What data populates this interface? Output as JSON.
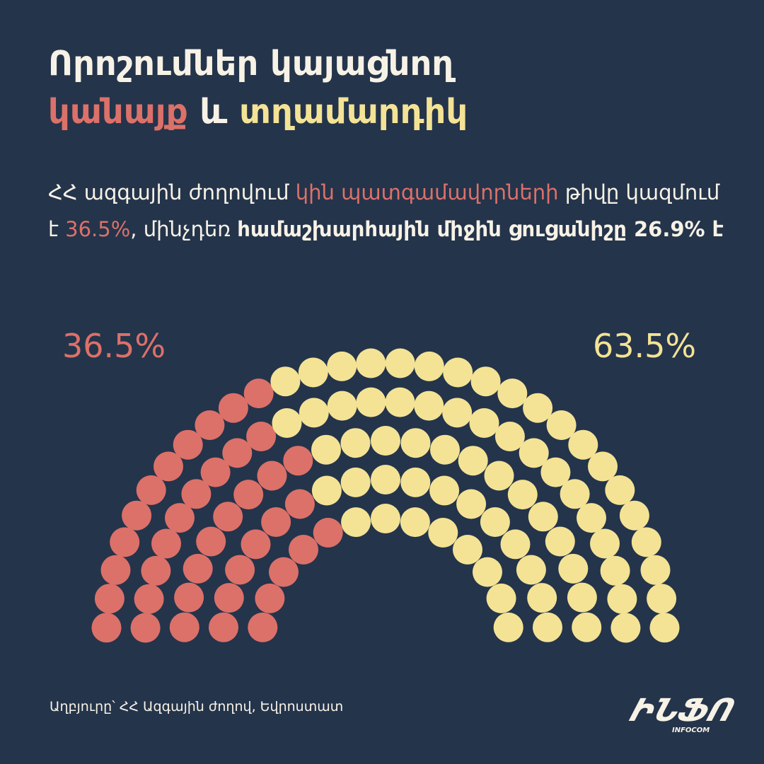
{
  "title": {
    "line1": "Որոշումներ կայացնող",
    "women": "կանայք",
    "and": "և",
    "men": "տղամարդիկ"
  },
  "subtitle": {
    "p1": "ՀՀ ազգային ժողովում ",
    "p2_women": "կին պատգամավորների",
    "p3": " թիվը կազմում է ",
    "p4_pct": "36.5%",
    "p5": ", մինչդեռ ",
    "p6_bold": "համաշխարհային միջին ցուցանիշը 26.9% է"
  },
  "source": "Աղբյուրը՝ ՀՀ Ազգային ժողով, Եվրոստատ",
  "logo": {
    "text": "ԻՆՖՈ",
    "sub": "INFOCOM"
  },
  "colors": {
    "background": "#24344b",
    "women": "#dc7169",
    "men": "#f4e395",
    "text": "#f7f2e6"
  },
  "chart_data": {
    "type": "parliament",
    "title": "",
    "series": [
      {
        "name": "կանայք",
        "value": 36.5,
        "label": "36.5%",
        "color": "#dc7169"
      },
      {
        "name": "տղամարդիկ",
        "value": 63.5,
        "label": "63.5%",
        "color": "#f4e395"
      }
    ],
    "reference": {
      "value": 26.9
    },
    "seats_total": 107,
    "legend": "none"
  }
}
